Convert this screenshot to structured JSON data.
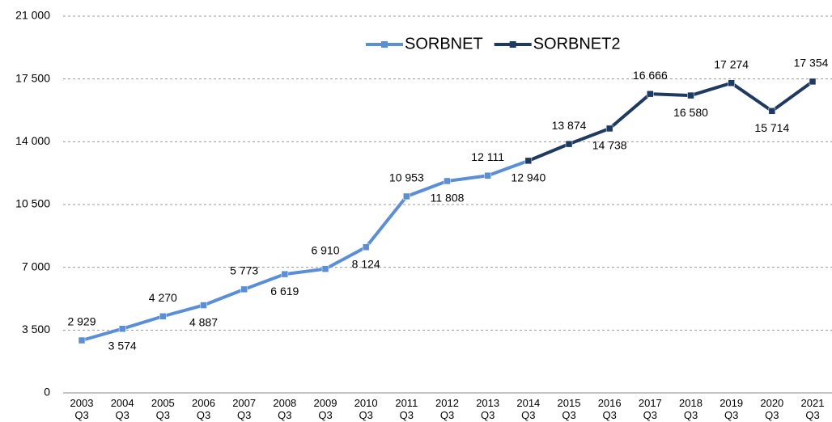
{
  "chart_data": {
    "type": "line",
    "categories": [
      [
        "2003",
        "Q3"
      ],
      [
        "2004",
        "Q3"
      ],
      [
        "2005",
        "Q3"
      ],
      [
        "2006",
        "Q3"
      ],
      [
        "2007",
        "Q3"
      ],
      [
        "2008",
        "Q3"
      ],
      [
        "2009",
        "Q3"
      ],
      [
        "2010",
        "Q3"
      ],
      [
        "2011",
        "Q3"
      ],
      [
        "2012",
        "Q3"
      ],
      [
        "2013",
        "Q3"
      ],
      [
        "2014",
        "Q3"
      ],
      [
        "2015",
        "Q3"
      ],
      [
        "2016",
        "Q3"
      ],
      [
        "2017",
        "Q3"
      ],
      [
        "2018",
        "Q3"
      ],
      [
        "2019",
        "Q3"
      ],
      [
        "2020",
        "Q3"
      ],
      [
        "2021",
        "Q3"
      ]
    ],
    "series": [
      {
        "name": "SORBNET",
        "color": "#5a8fd8",
        "values": [
          2929,
          3574,
          4270,
          4887,
          5773,
          6619,
          6910,
          8124,
          10953,
          11808,
          12111,
          12940,
          null,
          null,
          null,
          null,
          null,
          null,
          null
        ],
        "value_labels": [
          "2 929",
          "3 574",
          "4 270",
          "4 887",
          "5 773",
          "6 619",
          "6 910",
          "8 124",
          "10 953",
          "11 808",
          "12 111",
          null,
          null,
          null,
          null,
          null,
          null,
          null,
          null
        ]
      },
      {
        "name": "SORBNET2",
        "color": "#1f3a60",
        "values": [
          null,
          null,
          null,
          null,
          null,
          null,
          null,
          null,
          null,
          null,
          null,
          12940,
          13874,
          14738,
          16666,
          16580,
          17274,
          15714,
          17354
        ],
        "value_labels": [
          null,
          null,
          null,
          null,
          null,
          null,
          null,
          null,
          null,
          null,
          null,
          "12 940",
          "13 874",
          "14 738",
          "16 666",
          "16 580",
          "17 274",
          "15 714",
          "17 354"
        ]
      }
    ],
    "ylim": [
      0,
      21000
    ],
    "yticks": [
      0,
      {
        "value": 3500,
        "label": "3 500"
      },
      {
        "value": 7000,
        "label": "7 000"
      },
      {
        "value": 10500,
        "label": "10 500"
      },
      {
        "value": 14000,
        "label": "14 000"
      },
      {
        "value": 17500,
        "label": "17 500"
      },
      {
        "value": 21000,
        "label": "21 000"
      }
    ],
    "grid": true,
    "legend": "top"
  }
}
